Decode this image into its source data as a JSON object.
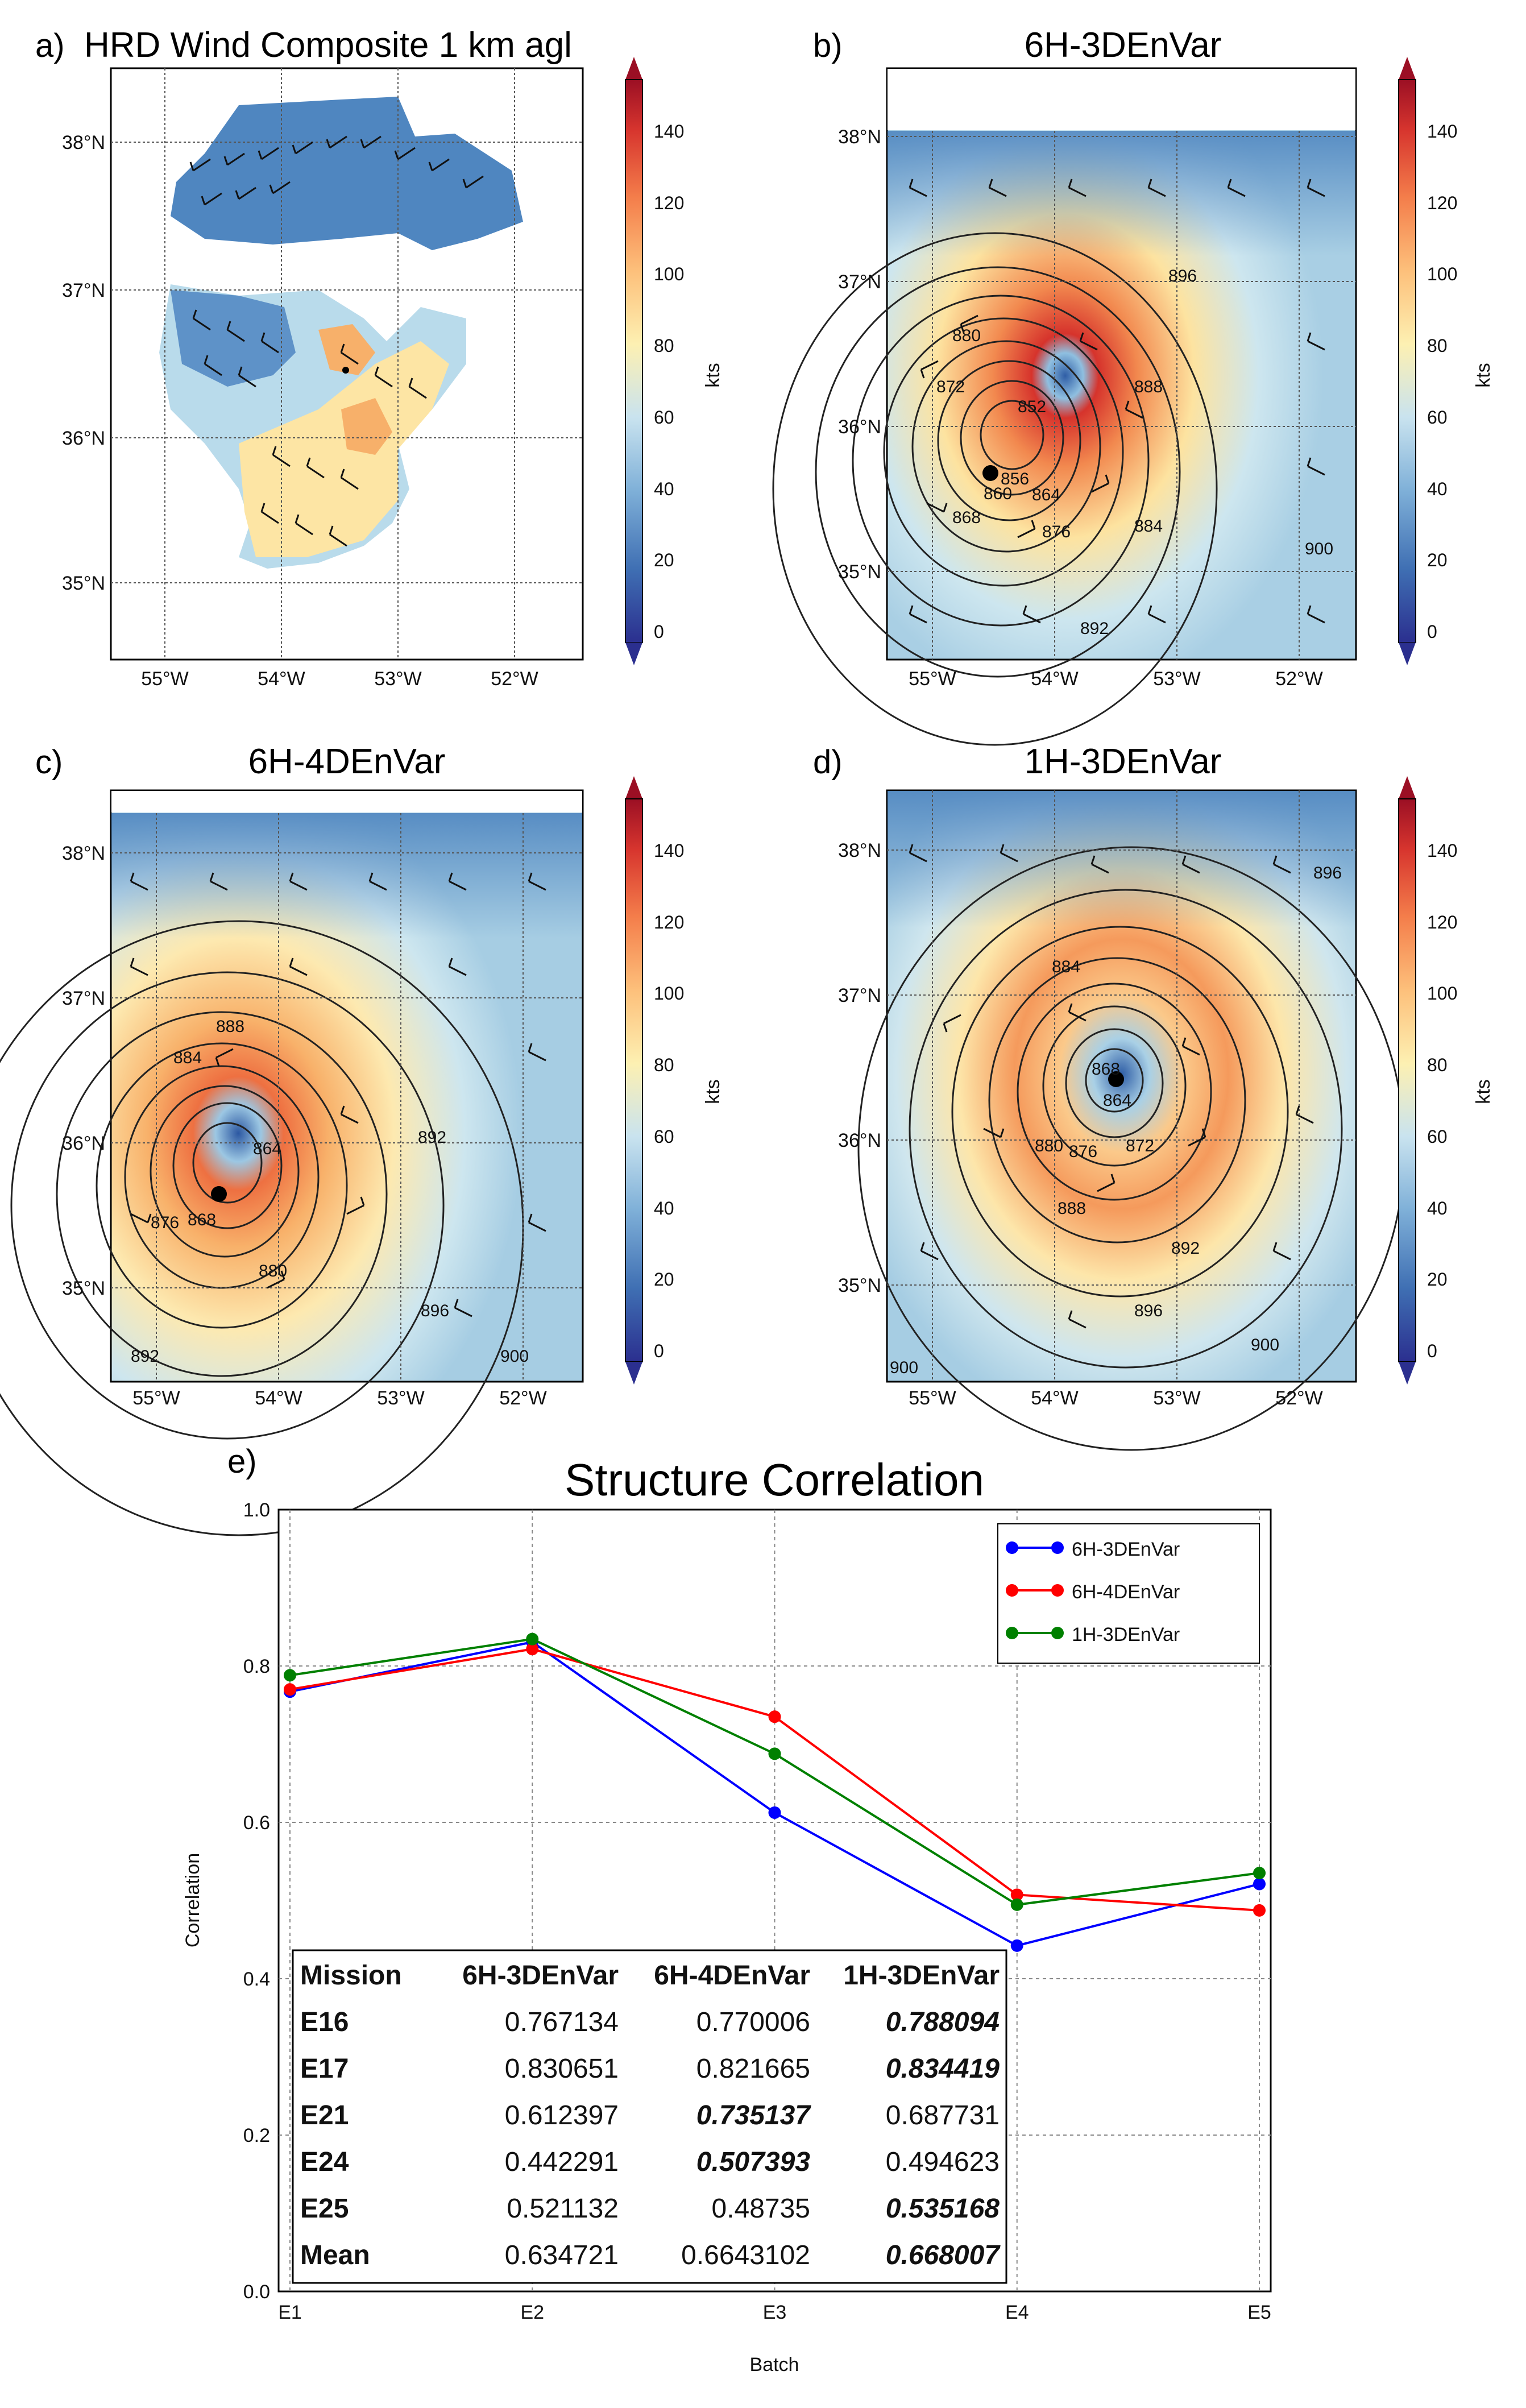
{
  "colors": {
    "series": [
      "#0000ff",
      "#ff0000",
      "#008000"
    ],
    "colorbar": [
      "#2b2f8f",
      "#3f6fb3",
      "#7fb0d8",
      "#c9e3ef",
      "#fdf0b2",
      "#fdc07b",
      "#f47e4b",
      "#d7352e",
      "#9b0f24"
    ]
  },
  "panel_labels": [
    "a)",
    "b)",
    "c)",
    "d)",
    "e)"
  ],
  "map_panels": [
    {
      "title": "HRD Wind Composite 1 km agl",
      "colorbar_label": "kts",
      "colorbar_ticks": [
        "0",
        "20",
        "40",
        "60",
        "80",
        "100",
        "120",
        "140"
      ],
      "lat_labels": [
        "38°N",
        "37°N",
        "36°N",
        "35°N"
      ],
      "lon_labels": [
        "55°W",
        "54°W",
        "53°W",
        "52°W"
      ],
      "contour_labels": []
    },
    {
      "title": "6H-3DEnVar",
      "colorbar_label": "kts",
      "colorbar_ticks": [
        "0",
        "20",
        "40",
        "60",
        "80",
        "100",
        "120",
        "140"
      ],
      "lat_labels": [
        "38°N",
        "37°N",
        "36°N",
        "35°N"
      ],
      "lon_labels": [
        "55°W",
        "54°W",
        "53°W",
        "52°W"
      ],
      "contour_labels": [
        "896",
        "880",
        "872",
        "852",
        "856",
        "860",
        "864",
        "868",
        "888",
        "884",
        "876",
        "892",
        "900"
      ]
    },
    {
      "title": "6H-4DEnVar",
      "colorbar_label": "kts",
      "colorbar_ticks": [
        "0",
        "20",
        "40",
        "60",
        "80",
        "100",
        "120",
        "140"
      ],
      "lat_labels": [
        "38°N",
        "37°N",
        "36°N",
        "35°N"
      ],
      "lon_labels": [
        "55°W",
        "54°W",
        "53°W",
        "52°W"
      ],
      "contour_labels": [
        "888",
        "884",
        "864",
        "868",
        "876",
        "880",
        "892",
        "896",
        "900",
        "892"
      ]
    },
    {
      "title": "1H-3DEnVar",
      "colorbar_label": "kts",
      "colorbar_ticks": [
        "0",
        "20",
        "40",
        "60",
        "80",
        "100",
        "120",
        "140"
      ],
      "lat_labels": [
        "38°N",
        "37°N",
        "36°N",
        "35°N"
      ],
      "lon_labels": [
        "55°W",
        "54°W",
        "53°W",
        "52°W"
      ],
      "contour_labels": [
        "896",
        "884",
        "868",
        "864",
        "880",
        "876",
        "872",
        "888",
        "892",
        "896",
        "900",
        "900"
      ]
    }
  ],
  "chart_data": {
    "type": "line",
    "title": "Structure Correlation",
    "xlabel": "Batch",
    "ylabel": "Correlation",
    "categories": [
      "E1",
      "E2",
      "E3",
      "E4",
      "E5"
    ],
    "ylim": [
      0.0,
      1.0
    ],
    "yticks": [
      "0.0",
      "0.2",
      "0.4",
      "0.6",
      "0.8",
      "1.0"
    ],
    "legend_position": "top-right",
    "series": [
      {
        "name": "6H-3DEnVar",
        "values": [
          0.767134,
          0.830651,
          0.612397,
          0.442291,
          0.521132
        ]
      },
      {
        "name": "6H-4DEnVar",
        "values": [
          0.770006,
          0.821665,
          0.735137,
          0.507393,
          0.48735
        ]
      },
      {
        "name": "1H-3DEnVar",
        "values": [
          0.788094,
          0.834419,
          0.687731,
          0.494623,
          0.535168
        ]
      }
    ],
    "table": {
      "header": [
        "Mission",
        "6H-3DEnVar",
        "6H-4DEnVar",
        "1H-3DEnVar"
      ],
      "rows": [
        {
          "cells": [
            "E16",
            "0.767134",
            "0.770006",
            "0.788094"
          ],
          "emph": 3
        },
        {
          "cells": [
            "E17",
            "0.830651",
            "0.821665",
            "0.834419"
          ],
          "emph": 3
        },
        {
          "cells": [
            "E21",
            "0.612397",
            "0.735137",
            "0.687731"
          ],
          "emph": 2
        },
        {
          "cells": [
            "E24",
            "0.442291",
            "0.507393",
            "0.494623"
          ],
          "emph": 2
        },
        {
          "cells": [
            "E25",
            "0.521132",
            "0.48735",
            "0.535168"
          ],
          "emph": 3
        },
        {
          "cells": [
            "Mean",
            "0.634721",
            "0.6643102",
            "0.668007"
          ],
          "emph": 3
        }
      ]
    }
  }
}
